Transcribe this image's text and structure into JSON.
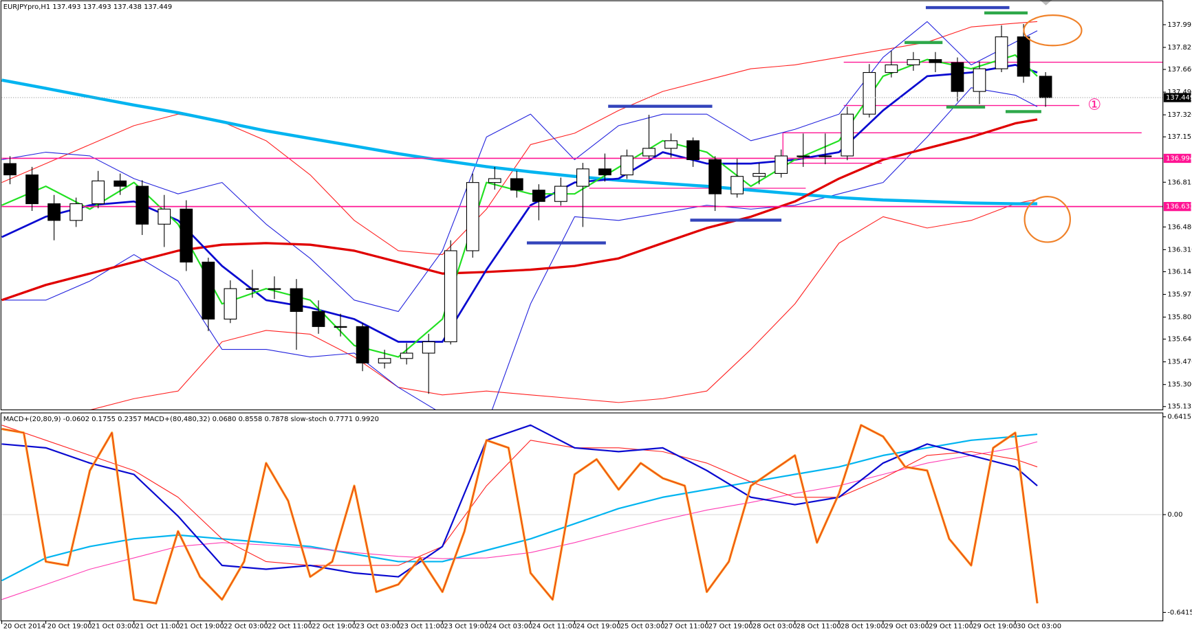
{
  "chart_data": {
    "type": "candlestick",
    "title": "EURJPYpro,H1  137.493 137.493 137.438 137.449",
    "x": [
      1.5,
      5.5,
      9.5,
      13.5,
      17.5,
      21.5,
      25.5,
      29.5,
      33.5,
      37.5,
      41.5,
      45.5,
      49.5,
      53.5,
      57.5,
      61.5,
      65.5,
      69.5,
      73.5,
      77.5,
      81.5,
      85.5,
      89.5,
      93.5,
      97.5,
      101.5,
      105.5,
      109.5,
      113.5,
      117.5,
      121.5,
      125.5,
      129.5,
      133.5,
      137.5,
      141.5,
      145.5,
      149.5,
      153.5,
      157.5,
      161.5,
      165.5,
      169.5,
      173.5,
      177.5,
      181.5,
      185.5,
      189.5
    ],
    "open": [
      136.955,
      136.87,
      136.654,
      136.529,
      136.654,
      136.825,
      136.785,
      136.501,
      136.614,
      136.217,
      135.79,
      136.018,
      136.018,
      136.018,
      135.847,
      135.734,
      135.734,
      135.461,
      135.495,
      135.535,
      135.62,
      136.302,
      136.813,
      136.842,
      136.756,
      136.671,
      136.785,
      136.915,
      136.87,
      137.012,
      137.069,
      137.126,
      136.984,
      136.728,
      136.859,
      136.881,
      137.012,
      137.012,
      137.012,
      137.325,
      137.637,
      137.694,
      137.734,
      137.711,
      137.495,
      137.665,
      137.904,
      137.609
    ],
    "high": [
      137.01,
      136.93,
      136.72,
      136.7,
      136.9,
      136.88,
      136.83,
      136.72,
      136.68,
      136.25,
      136.08,
      136.16,
      136.11,
      136.09,
      135.93,
      135.83,
      135.76,
      135.56,
      135.61,
      135.68,
      136.38,
      136.88,
      136.93,
      136.9,
      136.8,
      136.85,
      136.96,
      137.03,
      137.06,
      137.32,
      137.18,
      137.15,
      137.01,
      136.99,
      136.96,
      137.06,
      137.18,
      137.18,
      137.38,
      137.7,
      137.8,
      137.79,
      137.79,
      137.75,
      137.72,
      137.99,
      138.0,
      137.64
    ],
    "low": [
      136.8,
      136.6,
      136.38,
      136.48,
      136.62,
      136.72,
      136.42,
      136.33,
      136.15,
      135.7,
      135.76,
      135.95,
      135.94,
      135.56,
      135.68,
      135.66,
      135.4,
      135.42,
      135.45,
      135.23,
      135.6,
      136.25,
      136.76,
      136.7,
      136.53,
      136.64,
      136.48,
      136.82,
      136.84,
      136.99,
      137.0,
      136.93,
      136.6,
      136.7,
      136.8,
      136.85,
      136.93,
      136.95,
      136.98,
      137.3,
      137.6,
      137.65,
      137.64,
      137.42,
      137.4,
      137.64,
      137.56,
      137.38
    ],
    "close": [
      136.87,
      136.654,
      136.529,
      136.654,
      136.825,
      136.785,
      136.501,
      136.614,
      136.217,
      135.79,
      136.018,
      136.018,
      136.018,
      135.847,
      135.734,
      135.734,
      135.461,
      135.495,
      135.535,
      135.62,
      136.302,
      136.813,
      136.842,
      136.756,
      136.671,
      136.785,
      136.915,
      136.87,
      137.012,
      137.069,
      137.126,
      136.984,
      136.728,
      136.859,
      136.881,
      137.012,
      137.012,
      137.012,
      137.325,
      137.637,
      137.694,
      137.734,
      137.711,
      137.495,
      137.665,
      137.904,
      137.609,
      137.449
    ],
    "xlim": [
      0,
      210.8
    ],
    "ylim": [
      135.11,
      138.18
    ],
    "xticks": [
      {
        "value": 0,
        "label": "20 Oct 2014"
      },
      {
        "value": 8,
        "label": "20 Oct 19:00"
      },
      {
        "value": 16,
        "label": "21 Oct 03:00"
      },
      {
        "value": 24,
        "label": "21 Oct 11:00"
      },
      {
        "value": 32,
        "label": "21 Oct 19:00"
      },
      {
        "value": 40,
        "label": "22 Oct 03:00"
      },
      {
        "value": 48,
        "label": "22 Oct 11:00"
      },
      {
        "value": 56,
        "label": "22 Oct 19:00"
      },
      {
        "value": 64,
        "label": "23 Oct 03:00"
      },
      {
        "value": 72,
        "label": "23 Oct 11:00"
      },
      {
        "value": 80,
        "label": "23 Oct 19:00"
      },
      {
        "value": 88,
        "label": "24 Oct 03:00"
      },
      {
        "value": 96,
        "label": "24 Oct 11:00"
      },
      {
        "value": 104,
        "label": "24 Oct 19:00"
      },
      {
        "value": 112,
        "label": "25 Oct 03:00"
      },
      {
        "value": 120,
        "label": "27 Oct 11:00"
      },
      {
        "value": 128,
        "label": "27 Oct 19:00"
      },
      {
        "value": 136,
        "label": "28 Oct 03:00"
      },
      {
        "value": 144,
        "label": "28 Oct 11:00"
      },
      {
        "value": 152,
        "label": "28 Oct 19:00"
      },
      {
        "value": 160,
        "label": "29 Oct 03:00"
      },
      {
        "value": 168,
        "label": "29 Oct 11:00"
      },
      {
        "value": 176,
        "label": "29 Oct 19:00"
      },
      {
        "value": 184,
        "label": "30 Oct 03:00"
      }
    ],
    "yticks": [
      137.995,
      137.825,
      {
        "value": 137.66,
        "label": "137.660"
      },
      {
        "value": 137.49,
        "label": "137.490"
      },
      {
        "value": 137.32,
        "label": "137.320"
      },
      137.155,
      136.815,
      {
        "value": 136.48,
        "label": "136.480"
      },
      {
        "value": 136.31,
        "label": "136.310"
      },
      136.145,
      135.975,
      135.805,
      {
        "value": 135.64,
        "label": "135.640"
      },
      {
        "value": 135.47,
        "label": "135.470"
      },
      {
        "value": 135.3,
        "label": "135.300"
      },
      135.135
    ],
    "levels": [
      {
        "value": 136.994,
        "color": "#ff1493"
      },
      {
        "value": 136.633,
        "color": "#ff1493"
      }
    ],
    "last_price": 137.449,
    "annotation": "①",
    "overlay": {
      "x": [
        0,
        8,
        16,
        24,
        32,
        40,
        48,
        56,
        64,
        72,
        80,
        88,
        96,
        104,
        112,
        120,
        128,
        136,
        144,
        152,
        160,
        168,
        176,
        184,
        188
      ],
      "series": [
        {
          "color": "#ff2020",
          "width": 1,
          "values": [
            136.813,
            136.955,
            137.097,
            137.239,
            137.325,
            137.268,
            137.126,
            136.87,
            136.529,
            136.302,
            136.273,
            136.614,
            137.097,
            137.182,
            137.353,
            137.495,
            137.58,
            137.665,
            137.694,
            137.751,
            137.807,
            137.864,
            137.978,
            138.006,
            138.018
          ]
        },
        {
          "color": "#ff2020",
          "width": 1,
          "values": [
            134.995,
            135.052,
            135.109,
            135.194,
            135.251,
            135.62,
            135.705,
            135.677,
            135.506,
            135.279,
            135.222,
            135.251,
            135.222,
            135.194,
            135.165,
            135.194,
            135.251,
            135.563,
            135.904,
            136.359,
            136.557,
            136.472,
            136.529,
            136.654,
            136.688
          ]
        },
        {
          "color": "#2222dd",
          "width": 1,
          "values": [
            136.984,
            137.04,
            137.012,
            136.842,
            136.728,
            136.813,
            136.501,
            136.245,
            135.932,
            135.847,
            136.302,
            137.154,
            137.325,
            136.984,
            137.239,
            137.325,
            137.325,
            137.126,
            137.211,
            137.325,
            137.751,
            138.018,
            137.694,
            137.864,
            137.95
          ]
        },
        {
          "color": "#2222dd",
          "width": 1,
          "values": [
            135.932,
            135.932,
            136.075,
            136.273,
            136.075,
            135.563,
            135.563,
            135.506,
            135.535,
            135.279,
            135.08,
            134.995,
            135.904,
            136.557,
            136.529,
            136.586,
            136.643,
            136.614,
            136.643,
            136.728,
            136.813,
            137.154,
            137.523,
            137.467,
            137.381
          ]
        },
        {
          "color": "#00b4f0",
          "width": 4,
          "values": [
            137.58,
            137.518,
            137.455,
            137.393,
            137.336,
            137.268,
            137.2,
            137.143,
            137.086,
            137.029,
            136.978,
            136.932,
            136.893,
            136.859,
            136.83,
            136.807,
            136.785,
            136.756,
            136.728,
            136.7,
            136.682,
            136.671,
            136.66,
            136.654,
            136.654
          ]
        },
        {
          "color": "#e00000",
          "width": 3,
          "values": [
            135.932,
            136.046,
            136.131,
            136.217,
            136.302,
            136.347,
            136.359,
            136.347,
            136.302,
            136.217,
            136.131,
            136.143,
            136.16,
            136.188,
            136.245,
            136.359,
            136.472,
            136.557,
            136.671,
            136.842,
            136.984,
            137.069,
            137.154,
            137.256,
            137.285
          ]
        },
        {
          "color": "#0a0ad0",
          "width": 2.5,
          "values": [
            136.404,
            136.557,
            136.643,
            136.671,
            136.529,
            136.188,
            135.932,
            135.876,
            135.79,
            135.62,
            135.62,
            136.16,
            136.643,
            136.813,
            136.842,
            137.04,
            136.955,
            136.955,
            136.984,
            137.04,
            137.353,
            137.609,
            137.637,
            137.694,
            137.637
          ]
        },
        {
          "color": "#22e022",
          "width": 2,
          "values": [
            136.643,
            136.785,
            136.614,
            136.813,
            136.501,
            135.904,
            136.018,
            135.932,
            135.592,
            135.506,
            135.79,
            136.813,
            136.728,
            136.728,
            136.927,
            137.126,
            137.04,
            136.785,
            136.984,
            137.126,
            137.609,
            137.734,
            137.665,
            137.768,
            137.609
          ]
        }
      ]
    },
    "panel": {
      "title": "MACD+(20,80,9) -0.0602 0.1755 0.2357  MACD+(80,480,32) 0.0680 0.8558 0.7878  slow-stoch 0.7771 0.9920",
      "ylim": [
        -0.697,
        0.667
      ],
      "yticks": [
        0.6415,
        {
          "value": 0,
          "label": "0.00"
        },
        -0.6415
      ],
      "fast": {
        "x": [
          0,
          4,
          8,
          12,
          16,
          20,
          24,
          28,
          32,
          36,
          40,
          44,
          48,
          52,
          56,
          60,
          64,
          68,
          72,
          76,
          80,
          84,
          88,
          92,
          96,
          100,
          104,
          108,
          112,
          116,
          120,
          124,
          128,
          132,
          136,
          140,
          144,
          148,
          152,
          156,
          160,
          164,
          168,
          172,
          176,
          180,
          184,
          188
        ],
        "series": [
          {
            "color": "#ff9a1a",
            "width": 3,
            "values": [
              0.562,
              0.537,
              -0.308,
              -0.333,
              0.289,
              0.537,
              -0.557,
              -0.582,
              -0.109,
              -0.408,
              -0.557,
              -0.308,
              0.338,
              0.09,
              -0.408,
              -0.308,
              0.189,
              -0.507,
              -0.458,
              -0.284,
              -0.507,
              -0.109,
              0.488,
              0.438,
              -0.383,
              -0.557,
              0.264,
              0.363,
              0.164,
              0.338,
              0.239,
              0.189,
              -0.507,
              -0.308,
              0.189,
              0.289,
              0.388,
              -0.184,
              0.139,
              0.587,
              0.512,
              0.313,
              0.289,
              -0.159,
              -0.333,
              0.438,
              0.537,
              -0.582
            ]
          }
        ]
      },
      "slow": {
        "x": [
          0,
          8,
          16,
          24,
          32,
          40,
          48,
          56,
          64,
          72,
          80,
          88,
          96,
          104,
          112,
          120,
          128,
          136,
          144,
          152,
          160,
          168,
          176,
          184,
          188
        ],
        "series": [
          {
            "color": "#00b4f0",
            "width": 2,
            "values": [
              -0.433,
              -0.284,
              -0.209,
              -0.159,
              -0.134,
              -0.159,
              -0.184,
              -0.209,
              -0.259,
              -0.308,
              -0.308,
              -0.234,
              -0.159,
              -0.06,
              0.04,
              0.114,
              0.164,
              0.214,
              0.264,
              0.313,
              0.388,
              0.438,
              0.488,
              0.512,
              0.527
            ]
          },
          {
            "color": "#ff3cb4",
            "width": 1,
            "values": [
              -0.557,
              -0.458,
              -0.358,
              -0.284,
              -0.209,
              -0.184,
              -0.199,
              -0.219,
              -0.249,
              -0.274,
              -0.289,
              -0.284,
              -0.249,
              -0.184,
              -0.109,
              -0.035,
              0.03,
              0.08,
              0.139,
              0.189,
              0.264,
              0.338,
              0.388,
              0.438,
              0.478
            ]
          },
          {
            "color": "#ff2020",
            "width": 1,
            "values": [
              0.587,
              0.488,
              0.388,
              0.289,
              0.114,
              -0.159,
              -0.308,
              -0.333,
              -0.333,
              -0.333,
              -0.209,
              0.189,
              0.488,
              0.438,
              0.438,
              0.413,
              0.338,
              0.214,
              0.114,
              0.114,
              0.239,
              0.388,
              0.413,
              0.363,
              0.313
            ]
          },
          {
            "color": "#0a0ad0",
            "width": 2,
            "values": [
              0.463,
              0.438,
              0.338,
              0.264,
              -0.01,
              -0.333,
              -0.358,
              -0.333,
              -0.383,
              -0.408,
              -0.209,
              0.488,
              0.587,
              0.438,
              0.413,
              0.438,
              0.289,
              0.114,
              0.065,
              0.114,
              0.338,
              0.463,
              0.388,
              0.313,
              0.189
            ]
          }
        ]
      }
    }
  }
}
